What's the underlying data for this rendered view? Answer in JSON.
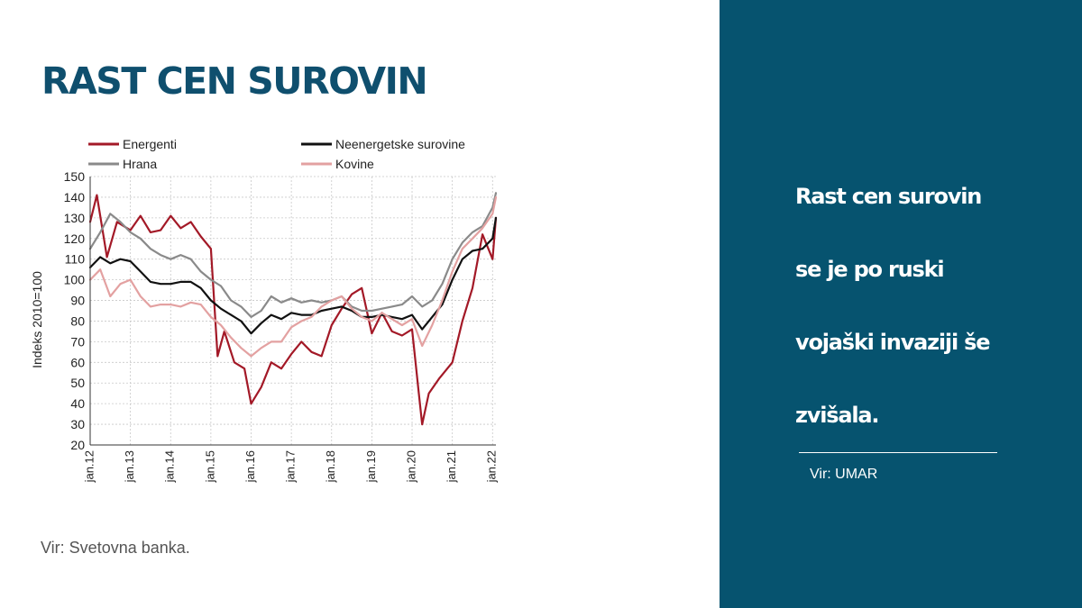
{
  "slide": {
    "title": "RAST CEN SUROVIN",
    "source_left": "Vir: Svetovna banka.",
    "panel_lines": [
      "Rast cen surovin",
      "se je po ruski",
      "vojaški invaziji še",
      "zvišala."
    ],
    "panel_source": "Vir: UMAR",
    "colors": {
      "title": "#0f4f6e",
      "panel_bg": "#06536f"
    }
  },
  "chart_data": {
    "type": "line",
    "ylabel": "Indeks 2010=100",
    "xlabel": "",
    "ylim": [
      20,
      150
    ],
    "yticks": [
      20,
      30,
      40,
      50,
      60,
      70,
      80,
      90,
      100,
      110,
      120,
      130,
      140,
      150
    ],
    "xlim": [
      "jan.12",
      "feb.22"
    ],
    "xticks": [
      "jan.12",
      "jan.13",
      "jan.14",
      "jan.15",
      "jan.16",
      "jan.17",
      "jan.18",
      "jan.19",
      "jan.20",
      "jan.21",
      "jan.22"
    ],
    "grid": true,
    "legend_position": "top",
    "series": [
      {
        "name": "Energenti",
        "color": "#a31927",
        "width": 2.2,
        "points": [
          [
            "jan.12",
            128
          ],
          [
            "mar.12",
            141
          ],
          [
            "jun.12",
            111
          ],
          [
            "sep.12",
            128
          ],
          [
            "jan.13",
            124
          ],
          [
            "apr.13",
            131
          ],
          [
            "jul.13",
            123
          ],
          [
            "oct.13",
            124
          ],
          [
            "jan.14",
            131
          ],
          [
            "apr.14",
            125
          ],
          [
            "jul.14",
            128
          ],
          [
            "oct.14",
            121
          ],
          [
            "jan.15",
            115
          ],
          [
            "mar.15",
            63
          ],
          [
            "may.15",
            75
          ],
          [
            "aug.15",
            60
          ],
          [
            "nov.15",
            57
          ],
          [
            "jan.16",
            40
          ],
          [
            "apr.16",
            48
          ],
          [
            "jul.16",
            60
          ],
          [
            "oct.16",
            57
          ],
          [
            "jan.17",
            64
          ],
          [
            "apr.17",
            70
          ],
          [
            "jul.17",
            65
          ],
          [
            "oct.17",
            63
          ],
          [
            "jan.18",
            78
          ],
          [
            "apr.18",
            86
          ],
          [
            "jul.18",
            93
          ],
          [
            "oct.18",
            96
          ],
          [
            "jan.19",
            74
          ],
          [
            "apr.19",
            84
          ],
          [
            "jul.19",
            75
          ],
          [
            "oct.19",
            73
          ],
          [
            "jan.20",
            76
          ],
          [
            "mar.20",
            45
          ],
          [
            "apr.20",
            30
          ],
          [
            "jun.20",
            45
          ],
          [
            "sep.20",
            52
          ],
          [
            "jan.21",
            60
          ],
          [
            "apr.21",
            80
          ],
          [
            "jul.21",
            96
          ],
          [
            "oct.21",
            122
          ],
          [
            "jan.22",
            110
          ],
          [
            "feb.22",
            130
          ]
        ]
      },
      {
        "name": "Hrana",
        "color": "#8a8a8a",
        "width": 2.2,
        "points": [
          [
            "jan.12",
            115
          ],
          [
            "apr.12",
            123
          ],
          [
            "jul.12",
            132
          ],
          [
            "oct.12",
            128
          ],
          [
            "jan.13",
            123
          ],
          [
            "apr.13",
            120
          ],
          [
            "jul.13",
            115
          ],
          [
            "oct.13",
            112
          ],
          [
            "jan.14",
            110
          ],
          [
            "apr.14",
            112
          ],
          [
            "jul.14",
            110
          ],
          [
            "oct.14",
            104
          ],
          [
            "jan.15",
            100
          ],
          [
            "apr.15",
            97
          ],
          [
            "jul.15",
            90
          ],
          [
            "oct.15",
            87
          ],
          [
            "jan.16",
            82
          ],
          [
            "apr.16",
            85
          ],
          [
            "jul.16",
            92
          ],
          [
            "oct.16",
            89
          ],
          [
            "jan.17",
            91
          ],
          [
            "apr.17",
            89
          ],
          [
            "jul.17",
            90
          ],
          [
            "oct.17",
            89
          ],
          [
            "jan.18",
            90
          ],
          [
            "apr.18",
            92
          ],
          [
            "jul.18",
            87
          ],
          [
            "oct.18",
            85
          ],
          [
            "jan.19",
            85
          ],
          [
            "apr.19",
            86
          ],
          [
            "jul.19",
            87
          ],
          [
            "oct.19",
            88
          ],
          [
            "jan.20",
            92
          ],
          [
            "apr.20",
            87
          ],
          [
            "jul.20",
            90
          ],
          [
            "oct.20",
            98
          ],
          [
            "jan.21",
            110
          ],
          [
            "apr.21",
            118
          ],
          [
            "jul.21",
            123
          ],
          [
            "oct.21",
            126
          ],
          [
            "jan.22",
            135
          ],
          [
            "feb.22",
            142
          ]
        ]
      },
      {
        "name": "Neenergetske surovine",
        "color": "#111111",
        "width": 2.2,
        "points": [
          [
            "jan.12",
            106
          ],
          [
            "apr.12",
            111
          ],
          [
            "jul.12",
            108
          ],
          [
            "oct.12",
            110
          ],
          [
            "jan.13",
            109
          ],
          [
            "apr.13",
            104
          ],
          [
            "jul.13",
            99
          ],
          [
            "oct.13",
            98
          ],
          [
            "jan.14",
            98
          ],
          [
            "apr.14",
            99
          ],
          [
            "jul.14",
            99
          ],
          [
            "oct.14",
            96
          ],
          [
            "jan.15",
            90
          ],
          [
            "apr.15",
            86
          ],
          [
            "jul.15",
            83
          ],
          [
            "oct.15",
            80
          ],
          [
            "jan.16",
            74
          ],
          [
            "apr.16",
            79
          ],
          [
            "jul.16",
            83
          ],
          [
            "oct.16",
            81
          ],
          [
            "jan.17",
            84
          ],
          [
            "apr.17",
            83
          ],
          [
            "jul.17",
            83
          ],
          [
            "oct.17",
            85
          ],
          [
            "jan.18",
            86
          ],
          [
            "apr.18",
            87
          ],
          [
            "jul.18",
            85
          ],
          [
            "oct.18",
            82
          ],
          [
            "jan.19",
            82
          ],
          [
            "apr.19",
            83
          ],
          [
            "jul.19",
            82
          ],
          [
            "oct.19",
            81
          ],
          [
            "jan.20",
            83
          ],
          [
            "apr.20",
            76
          ],
          [
            "jul.20",
            82
          ],
          [
            "oct.20",
            88
          ],
          [
            "jan.21",
            100
          ],
          [
            "apr.21",
            110
          ],
          [
            "jul.21",
            114
          ],
          [
            "oct.21",
            115
          ],
          [
            "jan.22",
            120
          ],
          [
            "feb.22",
            130
          ]
        ]
      },
      {
        "name": "Kovine",
        "color": "#e3a1a1",
        "width": 2.2,
        "points": [
          [
            "jan.12",
            100
          ],
          [
            "apr.12",
            105
          ],
          [
            "jul.12",
            92
          ],
          [
            "oct.12",
            98
          ],
          [
            "jan.13",
            100
          ],
          [
            "apr.13",
            92
          ],
          [
            "jul.13",
            87
          ],
          [
            "oct.13",
            88
          ],
          [
            "jan.14",
            88
          ],
          [
            "apr.14",
            87
          ],
          [
            "jul.14",
            89
          ],
          [
            "oct.14",
            88
          ],
          [
            "jan.15",
            82
          ],
          [
            "apr.15",
            78
          ],
          [
            "jul.15",
            72
          ],
          [
            "oct.15",
            67
          ],
          [
            "jan.16",
            63
          ],
          [
            "apr.16",
            67
          ],
          [
            "jul.16",
            70
          ],
          [
            "oct.16",
            70
          ],
          [
            "jan.17",
            77
          ],
          [
            "apr.17",
            80
          ],
          [
            "jul.17",
            82
          ],
          [
            "oct.17",
            87
          ],
          [
            "jan.18",
            90
          ],
          [
            "apr.18",
            92
          ],
          [
            "jul.18",
            86
          ],
          [
            "oct.18",
            82
          ],
          [
            "jan.19",
            80
          ],
          [
            "apr.19",
            84
          ],
          [
            "jul.19",
            81
          ],
          [
            "oct.19",
            78
          ],
          [
            "jan.20",
            81
          ],
          [
            "apr.20",
            68
          ],
          [
            "jul.20",
            78
          ],
          [
            "oct.20",
            90
          ],
          [
            "jan.21",
            104
          ],
          [
            "apr.21",
            115
          ],
          [
            "jul.21",
            120
          ],
          [
            "oct.21",
            125
          ],
          [
            "jan.22",
            132
          ],
          [
            "feb.22",
            140
          ]
        ]
      }
    ]
  }
}
